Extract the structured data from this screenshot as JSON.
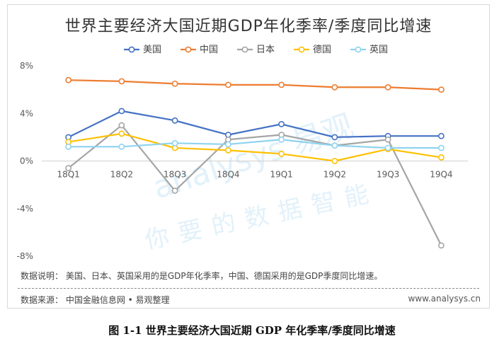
{
  "chart_data": {
    "type": "line",
    "title": "世界主要经济大国近期GDP年化季率/季度同比增速",
    "categories": [
      "18Q1",
      "18Q2",
      "18Q3",
      "18Q4",
      "19Q1",
      "19Q2",
      "19Q3",
      "19Q4"
    ],
    "ylim": [
      -8,
      8
    ],
    "yticks": [
      "8%",
      "4%",
      "0%",
      "-4%",
      "-8%"
    ],
    "ytick_values": [
      8,
      4,
      0,
      -4,
      -8
    ],
    "grid": false,
    "legend_position": "top",
    "series": [
      {
        "name": "美国",
        "color": "#4472c4",
        "values": [
          2.0,
          4.2,
          3.4,
          2.2,
          3.1,
          2.0,
          2.1,
          2.1
        ]
      },
      {
        "name": "中国",
        "color": "#ed7d31",
        "values": [
          6.8,
          6.7,
          6.5,
          6.4,
          6.4,
          6.2,
          6.2,
          6.0
        ]
      },
      {
        "name": "日本",
        "color": "#a5a5a5",
        "values": [
          -0.6,
          3.0,
          -2.5,
          1.8,
          2.2,
          1.3,
          1.8,
          -7.1
        ]
      },
      {
        "name": "德国",
        "color": "#ffc000",
        "values": [
          1.6,
          2.3,
          1.1,
          0.9,
          0.6,
          0.0,
          1.0,
          0.3
        ]
      },
      {
        "name": "英国",
        "color": "#8fd3f0",
        "values": [
          1.2,
          1.2,
          1.5,
          1.4,
          1.8,
          1.3,
          1.1,
          1.1
        ]
      }
    ]
  },
  "note": "数据说明： 美国、日本、英国采用的是GDP年化季率，中国、德国采用的是GDP季度同比增速。",
  "source": "数据来源： 中国金融信息网 • 易观整理",
  "website": "www.analysys.cn",
  "watermark": [
    "analysys 易观",
    "你要的数据智能"
  ],
  "caption": "图 1-1  世界主要经济大国近期 GDP 年化季率/季度同比增速"
}
